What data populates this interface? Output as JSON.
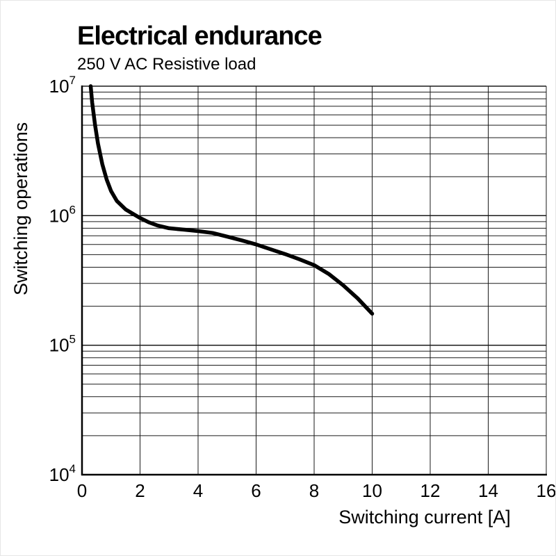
{
  "chart_data": {
    "type": "line",
    "title": "Electrical endurance",
    "subtitle": "250 V AC Resistive load",
    "xlabel": "Switching current [A]",
    "ylabel": "Switching operations",
    "x_ticks": [
      0,
      2,
      4,
      6,
      8,
      10,
      12,
      14,
      16
    ],
    "xlim": [
      0,
      16
    ],
    "y_scale": "log",
    "y_tick_exponents": [
      4,
      5,
      6,
      7
    ],
    "ylim": [
      10000,
      10000000
    ],
    "grid": {
      "vertical_every": 2,
      "horizontal_minor_log": true,
      "boxed": true
    },
    "colors": {
      "curve": "#000000",
      "grid": "#1a1a1a",
      "axis": "#000000",
      "text": "#000000"
    },
    "series": [
      {
        "name": "endurance-250V-AC-resistive",
        "points": [
          [
            0.3,
            10000000
          ],
          [
            0.35,
            7500000
          ],
          [
            0.45,
            5000000
          ],
          [
            0.55,
            3600000
          ],
          [
            0.7,
            2500000
          ],
          [
            0.85,
            1900000
          ],
          [
            1.0,
            1550000
          ],
          [
            1.2,
            1300000
          ],
          [
            1.5,
            1120000
          ],
          [
            1.8,
            1020000
          ],
          [
            2.0,
            960000
          ],
          [
            2.3,
            890000
          ],
          [
            2.6,
            840000
          ],
          [
            3.0,
            800000
          ],
          [
            3.5,
            780000
          ],
          [
            4.0,
            760000
          ],
          [
            4.5,
            735000
          ],
          [
            5.0,
            690000
          ],
          [
            5.5,
            645000
          ],
          [
            6.0,
            600000
          ],
          [
            6.5,
            550000
          ],
          [
            7.0,
            505000
          ],
          [
            7.5,
            460000
          ],
          [
            8.0,
            415000
          ],
          [
            8.5,
            355000
          ],
          [
            9.0,
            290000
          ],
          [
            9.5,
            230000
          ],
          [
            10.0,
            175000
          ]
        ]
      }
    ]
  }
}
